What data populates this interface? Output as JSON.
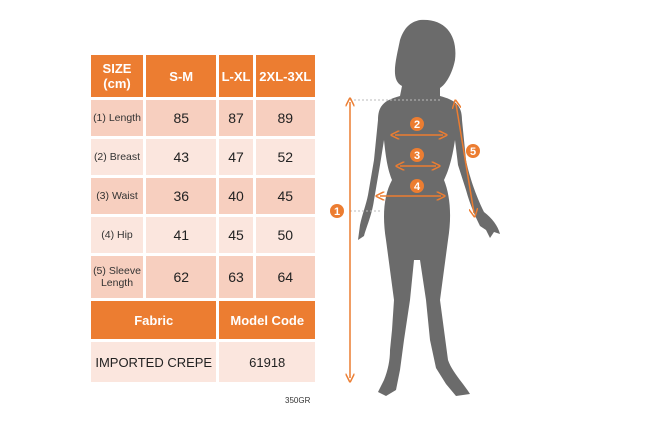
{
  "table": {
    "headers": [
      "SIZE (cm)",
      "S-M",
      "L-XL",
      "2XL-3XL"
    ],
    "rows": [
      {
        "label": "(1) Length",
        "values": [
          "85",
          "87",
          "89"
        ]
      },
      {
        "label": "(2) Breast",
        "values": [
          "43",
          "47",
          "52"
        ]
      },
      {
        "label": "(3) Waist",
        "values": [
          "36",
          "40",
          "45"
        ]
      },
      {
        "label": "(4) Hip",
        "values": [
          "41",
          "45",
          "50"
        ]
      },
      {
        "label": "(5) Sleeve Length",
        "values": [
          "62",
          "63",
          "64"
        ]
      }
    ],
    "fabric_label": "Fabric",
    "model_code_label": "Model Code",
    "fabric_value": "IMPORTED CREPE",
    "model_code_value": "61918"
  },
  "note": "350GR",
  "markers": [
    "1",
    "2",
    "3",
    "4",
    "5"
  ],
  "colors": {
    "accent": "#ec7d31",
    "light": "#f7cfbf",
    "lighter": "#fbe6de",
    "silhouette": "#6b6b6b"
  }
}
